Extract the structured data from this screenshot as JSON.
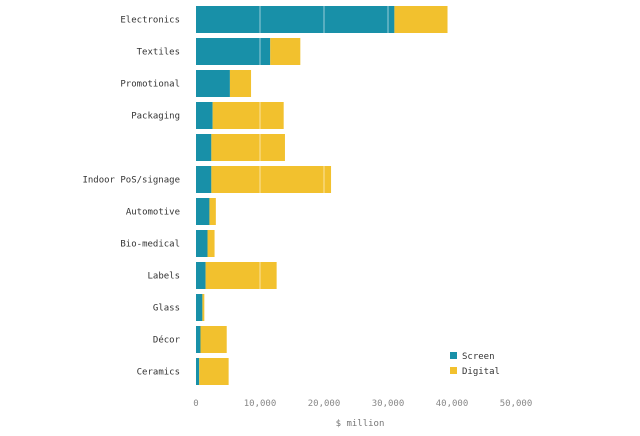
{
  "chart_data": {
    "type": "bar",
    "orientation": "horizontal",
    "stacked": true,
    "title": "",
    "xlabel": "$ million",
    "ylabel": "",
    "xlim": [
      0,
      50000
    ],
    "xticks": [
      0,
      10000,
      20000,
      30000,
      40000,
      50000
    ],
    "xtick_labels": [
      "0",
      "10,000",
      "20,000",
      "30,000",
      "40,000",
      "50,000"
    ],
    "categories": [
      "Electronics",
      "Textiles",
      "Promotional",
      "Packaging",
      "",
      "Indoor PoS/signage",
      "Automotive",
      "Bio-medical",
      "Labels",
      "Glass",
      "Décor",
      "Ceramics"
    ],
    "series": [
      {
        "name": "Screen",
        "color": "#1890a8",
        "values": [
          31000,
          11600,
          5300,
          2600,
          2400,
          2400,
          2100,
          1800,
          1500,
          1000,
          700,
          500
        ]
      },
      {
        "name": "Digital",
        "color": "#f2c12e",
        "values": [
          8300,
          4700,
          3300,
          11100,
          11500,
          18700,
          1000,
          1100,
          11100,
          300,
          4100,
          4600
        ]
      }
    ],
    "legend": {
      "position": "bottom-right"
    },
    "grid": true
  }
}
